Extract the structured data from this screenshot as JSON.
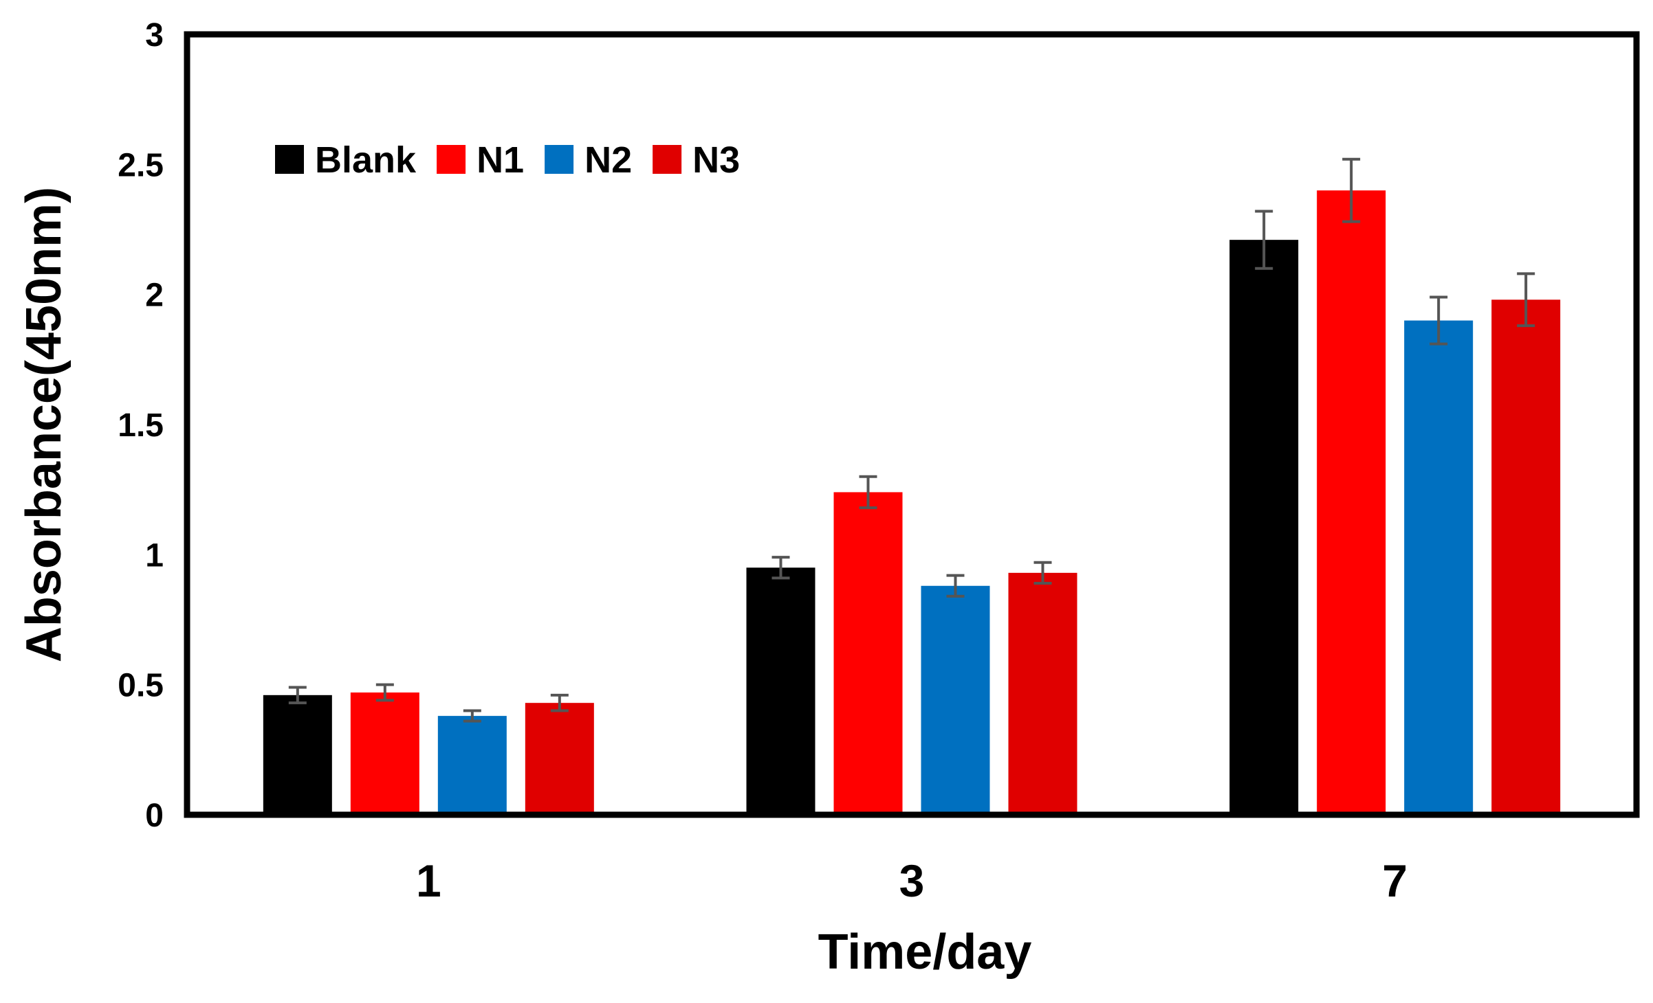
{
  "chart_data": {
    "type": "bar",
    "title": "",
    "xlabel": "Time/day",
    "ylabel": "Absorbance(450nm)",
    "ylim": [
      0,
      3
    ],
    "yticks": [
      "0",
      "0.5",
      "1",
      "1.5",
      "2",
      "2.5",
      "3"
    ],
    "categories": [
      "1",
      "3",
      "7"
    ],
    "series": [
      {
        "name": "Blank",
        "color": "#000000",
        "values": [
          0.46,
          0.95,
          2.21
        ],
        "errors": [
          0.03,
          0.04,
          0.11
        ]
      },
      {
        "name": "N1",
        "color": "#ff0000",
        "values": [
          0.47,
          1.24,
          2.4
        ],
        "errors": [
          0.03,
          0.06,
          0.12
        ]
      },
      {
        "name": "N2",
        "color": "#0070c0",
        "values": [
          0.38,
          0.88,
          1.9
        ],
        "errors": [
          0.02,
          0.04,
          0.09
        ]
      },
      {
        "name": "N3",
        "color": "#e00000",
        "values": [
          0.43,
          0.93,
          1.98
        ],
        "errors": [
          0.03,
          0.04,
          0.1
        ]
      }
    ],
    "legend_position": "top-left",
    "grid": false,
    "error_bar_color": "#555555"
  }
}
